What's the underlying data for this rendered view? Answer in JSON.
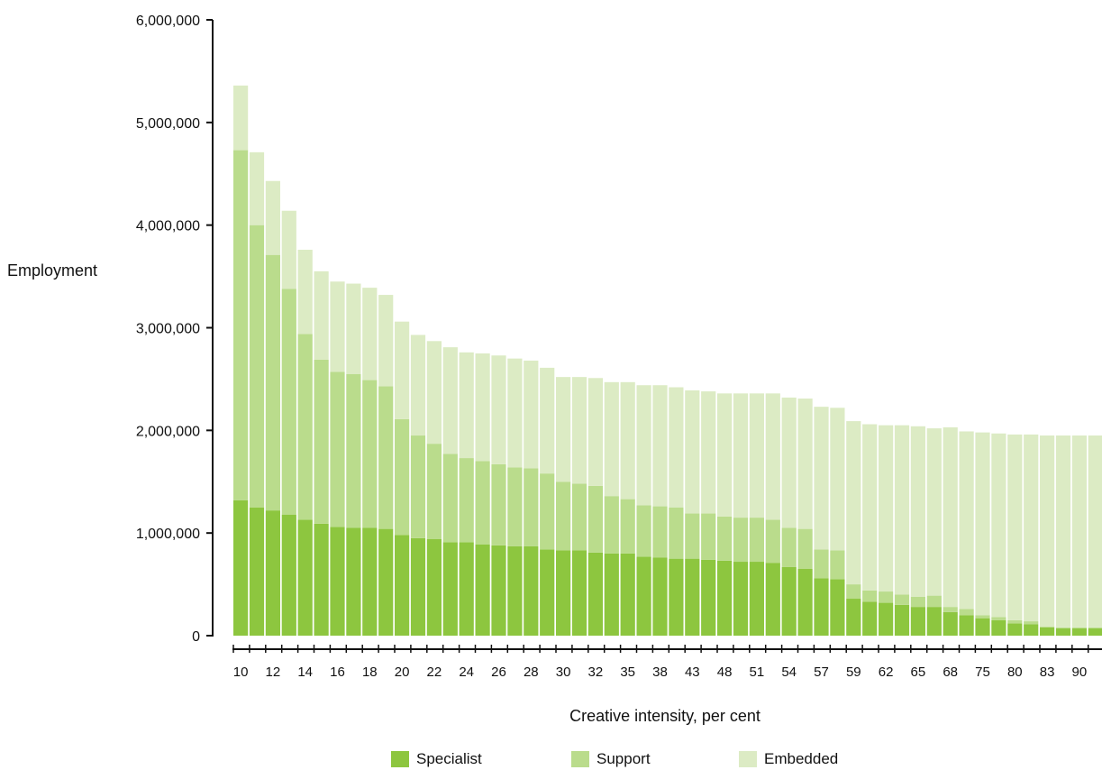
{
  "colors": {
    "specialist": "#8dc63f",
    "support": "#badc8c",
    "embedded": "#dcebc4",
    "axis": "#111111"
  },
  "chart_data": {
    "type": "bar",
    "stacked": true,
    "title": "",
    "xlabel": "Creative intensity, per cent",
    "ylabel": "Employment",
    "ylim": [
      0,
      6000000
    ],
    "yticks": [
      0,
      1000000,
      2000000,
      3000000,
      4000000,
      5000000,
      6000000
    ],
    "ytick_labels": [
      "0",
      "1,000,000",
      "2,000,000",
      "3,000,000",
      "4,000,000",
      "5,000,000",
      "6,000,000"
    ],
    "xtick_labels": [
      "10",
      "12",
      "14",
      "16",
      "18",
      "20",
      "22",
      "24",
      "26",
      "28",
      "30",
      "32",
      "35",
      "38",
      "43",
      "48",
      "51",
      "54",
      "57",
      "59",
      "62",
      "65",
      "68",
      "75",
      "80",
      "83",
      "90"
    ],
    "xtick_every": 2,
    "legend_position": "bottom",
    "series": [
      {
        "name": "Specialist",
        "values": [
          1320000,
          1250000,
          1220000,
          1180000,
          1130000,
          1090000,
          1060000,
          1050000,
          1050000,
          1040000,
          980000,
          950000,
          940000,
          910000,
          910000,
          890000,
          880000,
          870000,
          870000,
          840000,
          830000,
          830000,
          810000,
          800000,
          800000,
          770000,
          760000,
          750000,
          750000,
          740000,
          730000,
          720000,
          720000,
          710000,
          670000,
          650000,
          560000,
          550000,
          360000,
          330000,
          320000,
          300000,
          280000,
          280000,
          230000,
          200000,
          170000,
          150000,
          120000,
          110000,
          80000,
          70000,
          70000,
          70000
        ]
      },
      {
        "name": "Support",
        "values": [
          3410000,
          2750000,
          2490000,
          2200000,
          1810000,
          1600000,
          1510000,
          1500000,
          1440000,
          1390000,
          1130000,
          1000000,
          930000,
          860000,
          820000,
          810000,
          790000,
          770000,
          760000,
          740000,
          670000,
          650000,
          650000,
          560000,
          530000,
          500000,
          500000,
          500000,
          440000,
          450000,
          430000,
          430000,
          430000,
          420000,
          380000,
          390000,
          280000,
          280000,
          140000,
          110000,
          110000,
          100000,
          100000,
          110000,
          50000,
          60000,
          30000,
          30000,
          30000,
          30000,
          10000,
          10000,
          10000,
          10000
        ]
      },
      {
        "name": "Embedded",
        "values": [
          630000,
          710000,
          720000,
          760000,
          820000,
          860000,
          880000,
          880000,
          900000,
          890000,
          950000,
          980000,
          1000000,
          1040000,
          1030000,
          1050000,
          1060000,
          1060000,
          1050000,
          1030000,
          1020000,
          1040000,
          1050000,
          1110000,
          1140000,
          1170000,
          1180000,
          1170000,
          1200000,
          1190000,
          1200000,
          1210000,
          1210000,
          1230000,
          1270000,
          1270000,
          1390000,
          1390000,
          1590000,
          1620000,
          1620000,
          1650000,
          1660000,
          1630000,
          1750000,
          1730000,
          1780000,
          1790000,
          1810000,
          1820000,
          1860000,
          1870000,
          1870000,
          1870000
        ]
      }
    ]
  }
}
